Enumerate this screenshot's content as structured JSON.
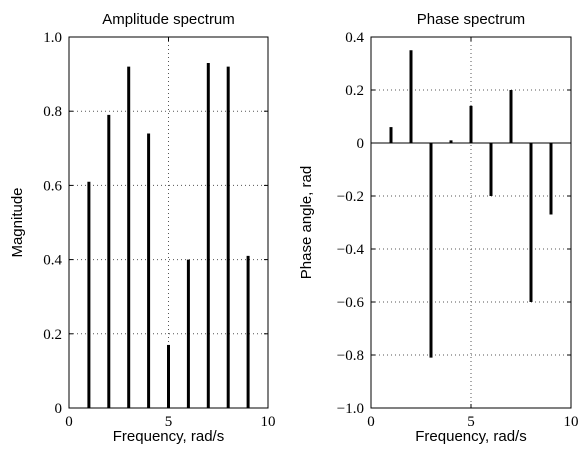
{
  "chart_data": [
    {
      "type": "bar",
      "title": "Amplitude spectrum",
      "xlabel": "Frequency, rad/s",
      "ylabel": "Magnitude",
      "xlim": [
        0,
        10
      ],
      "ylim": [
        0,
        1.0
      ],
      "xticks": [
        0,
        5,
        10
      ],
      "xtick_labels": [
        "0",
        "5",
        "10"
      ],
      "yticks": [
        0,
        0.2,
        0.4,
        0.6,
        0.8,
        1.0
      ],
      "ytick_labels": [
        "0",
        "0.2",
        "0.4",
        "0.6",
        "0.8",
        "1.0"
      ],
      "grid": "dotted",
      "x": [
        1,
        2,
        3,
        4,
        5,
        6,
        7,
        8,
        9
      ],
      "values": [
        0.61,
        0.79,
        0.92,
        0.74,
        0.17,
        0.4,
        0.93,
        0.92,
        0.41
      ]
    },
    {
      "type": "bar",
      "title": "Phase spectrum",
      "xlabel": "Frequency, rad/s",
      "ylabel": "Phase angle, rad",
      "xlim": [
        0,
        10
      ],
      "ylim": [
        -1.0,
        0.4
      ],
      "xticks": [
        0,
        5,
        10
      ],
      "xtick_labels": [
        "0",
        "5",
        "10"
      ],
      "yticks": [
        0.4,
        0.2,
        0,
        -0.2,
        -0.4,
        -0.6,
        -0.8,
        -1.0
      ],
      "ytick_labels": [
        "0.4",
        "0.2",
        "0",
        "−0.2",
        "−0.4",
        "−0.6",
        "−0.8",
        "−1.0"
      ],
      "grid": "dotted",
      "x": [
        1,
        2,
        3,
        4,
        5,
        6,
        7,
        8,
        9
      ],
      "values": [
        0.06,
        0.35,
        -0.81,
        0.01,
        0.14,
        -0.2,
        0.2,
        -0.6,
        -0.27
      ]
    }
  ]
}
